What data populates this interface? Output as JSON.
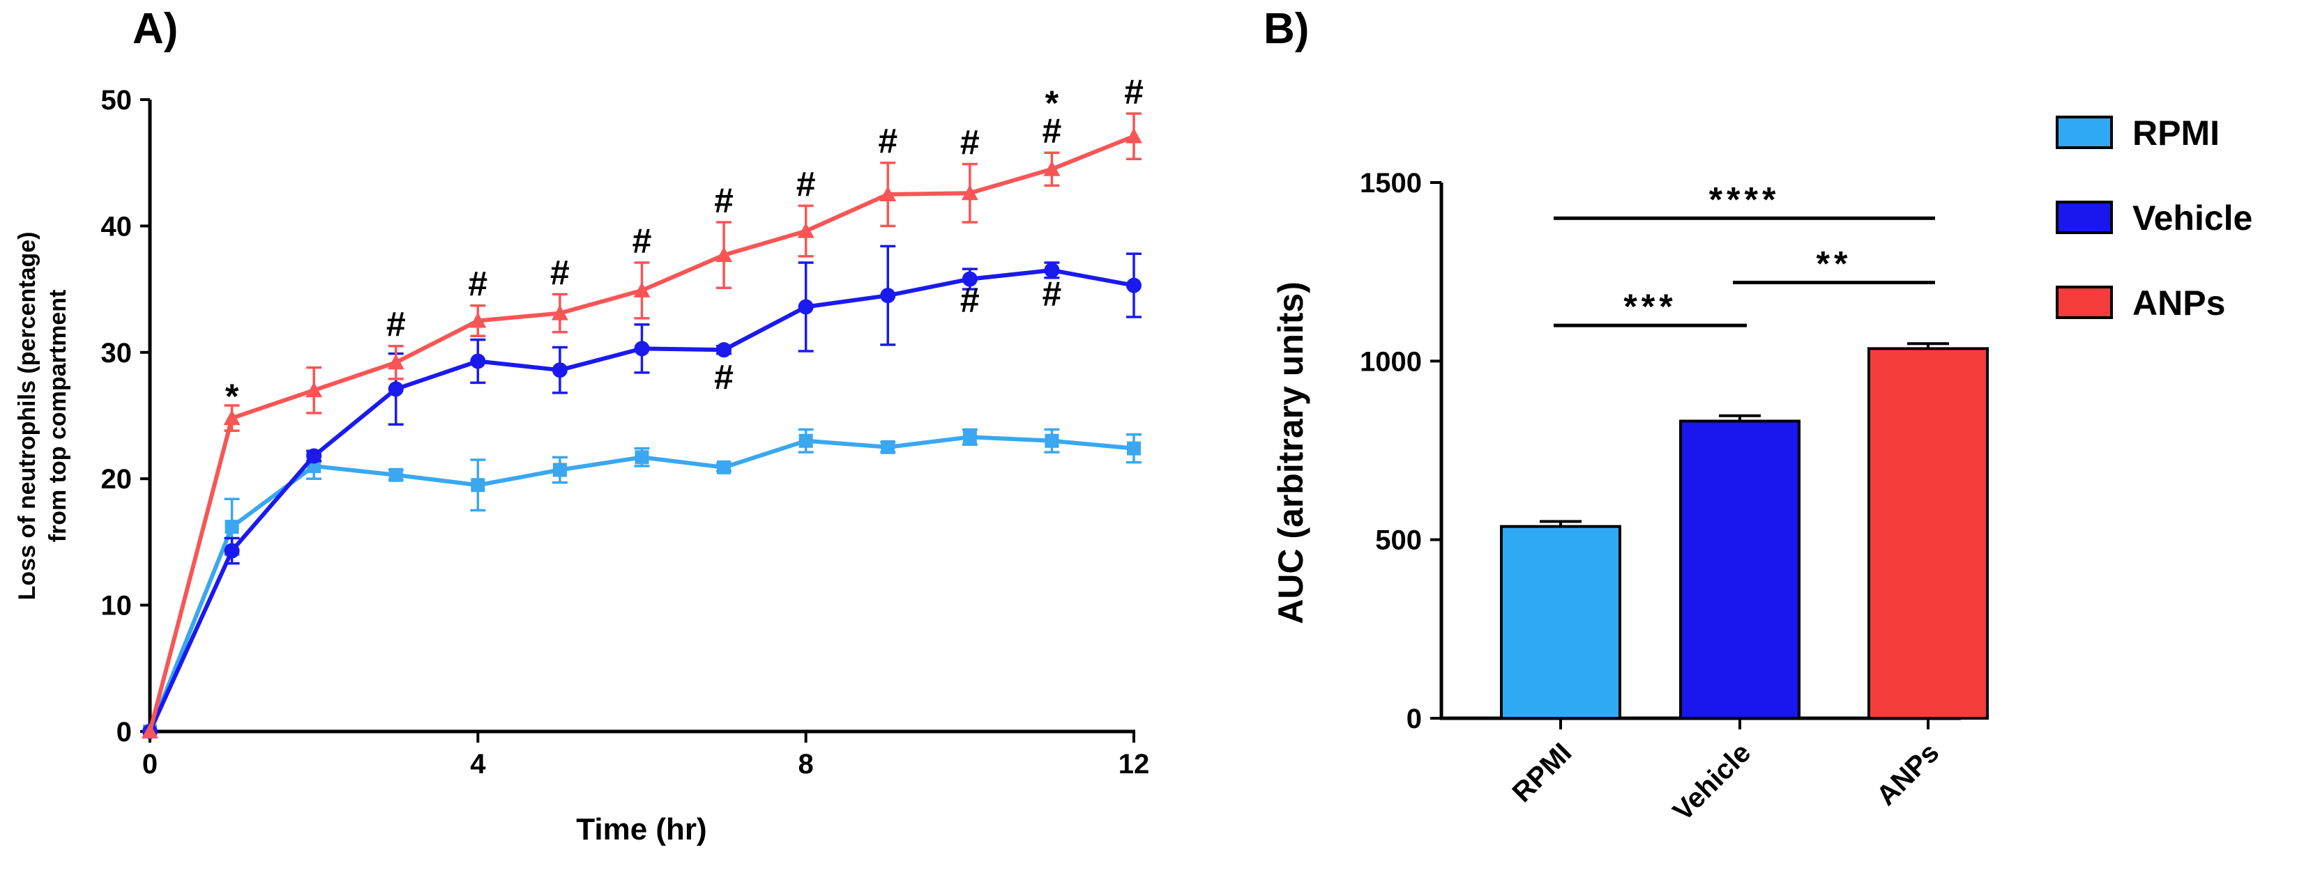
{
  "chart_data": [
    {
      "panel": "A)",
      "type": "line",
      "xlabel": "Time (hr)",
      "ylabel_line1": "Loss of neutrophils (percentage)",
      "ylabel_line2": "from top compartment",
      "xlim": [
        0,
        12
      ],
      "ylim": [
        0,
        50
      ],
      "x_ticks": [
        0,
        4,
        8,
        12
      ],
      "y_ticks": [
        0,
        10,
        20,
        30,
        40,
        50
      ],
      "x": [
        0,
        1,
        2,
        3,
        4,
        5,
        6,
        7,
        8,
        9,
        10,
        11,
        12
      ],
      "series": [
        {
          "name": "RPMI",
          "color": "#3aa7f0",
          "marker": "square",
          "values": [
            0,
            16.2,
            21.0,
            20.3,
            19.5,
            20.7,
            21.7,
            20.9,
            23.0,
            22.5,
            23.3,
            23.0,
            22.4
          ],
          "errors": [
            0,
            2.2,
            1.0,
            0.4,
            2.0,
            1.0,
            0.7,
            0.3,
            0.9,
            0.4,
            0.6,
            0.9,
            1.1
          ]
        },
        {
          "name": "Vehicle",
          "color": "#1a1aee",
          "marker": "circle",
          "values": [
            0,
            14.3,
            21.8,
            27.1,
            29.3,
            28.6,
            30.3,
            30.2,
            33.6,
            34.5,
            35.8,
            36.5,
            35.3
          ],
          "errors": [
            0,
            1.0,
            0.4,
            2.8,
            1.7,
            1.8,
            1.9,
            0.3,
            3.5,
            3.9,
            0.8,
            0.6,
            2.5
          ]
        },
        {
          "name": "ANPs",
          "color": "#f85555",
          "marker": "triangle",
          "values": [
            0,
            24.8,
            27.0,
            29.2,
            32.5,
            33.1,
            34.9,
            37.7,
            39.6,
            42.5,
            42.6,
            44.5,
            47.1
          ],
          "errors": [
            0,
            1.0,
            1.8,
            1.3,
            1.2,
            1.5,
            2.2,
            2.6,
            2.0,
            2.5,
            2.3,
            1.3,
            1.8
          ]
        }
      ],
      "annotations": [
        {
          "x": 1,
          "lines": [
            "*"
          ]
        },
        {
          "x": 3,
          "lines": [
            "#"
          ]
        },
        {
          "x": 4,
          "lines": [
            "#"
          ]
        },
        {
          "x": 5,
          "lines": [
            "#"
          ]
        },
        {
          "x": 6,
          "lines": [
            "#"
          ]
        },
        {
          "x": 7,
          "lines": [
            "#"
          ]
        },
        {
          "x": 8,
          "lines": [
            "#"
          ]
        },
        {
          "x": 9,
          "lines": [
            "#"
          ]
        },
        {
          "x": 10,
          "lines": [
            "#"
          ]
        },
        {
          "x": 11,
          "lines": [
            "*",
            "#"
          ]
        },
        {
          "x": 12,
          "lines": [
            "#"
          ]
        },
        {
          "x": 7,
          "lines": [
            "#"
          ],
          "below_series": "Vehicle"
        },
        {
          "x": 10,
          "lines": [
            "#"
          ],
          "below_series": "Vehicle"
        },
        {
          "x": 11,
          "lines": [
            "#"
          ],
          "below_series": "Vehicle"
        }
      ]
    },
    {
      "panel": "B)",
      "type": "bar",
      "ylabel": "AUC (arbitrary units)",
      "ylim": [
        0,
        1500
      ],
      "y_ticks": [
        0,
        500,
        1000,
        1500
      ],
      "categories": [
        "RPMI",
        "Vehicle",
        "ANPs"
      ],
      "values": [
        537,
        832,
        1035
      ],
      "errors": [
        14,
        15,
        14
      ],
      "colors": [
        "#30a9f4",
        "#1717ee",
        "#f53c3c"
      ],
      "legend": [
        {
          "label": "RPMI",
          "color": "#30a9f4"
        },
        {
          "label": "Vehicle",
          "color": "#1717ee"
        },
        {
          "label": "ANPs",
          "color": "#f53c3c"
        }
      ],
      "significance": [
        {
          "from": 0,
          "to": 2,
          "label": "****",
          "y": 1400
        },
        {
          "from": 1,
          "to": 2,
          "label": "**",
          "y": 1220
        },
        {
          "from": 0,
          "to": 1,
          "label": "***",
          "y": 1100
        }
      ]
    }
  ]
}
